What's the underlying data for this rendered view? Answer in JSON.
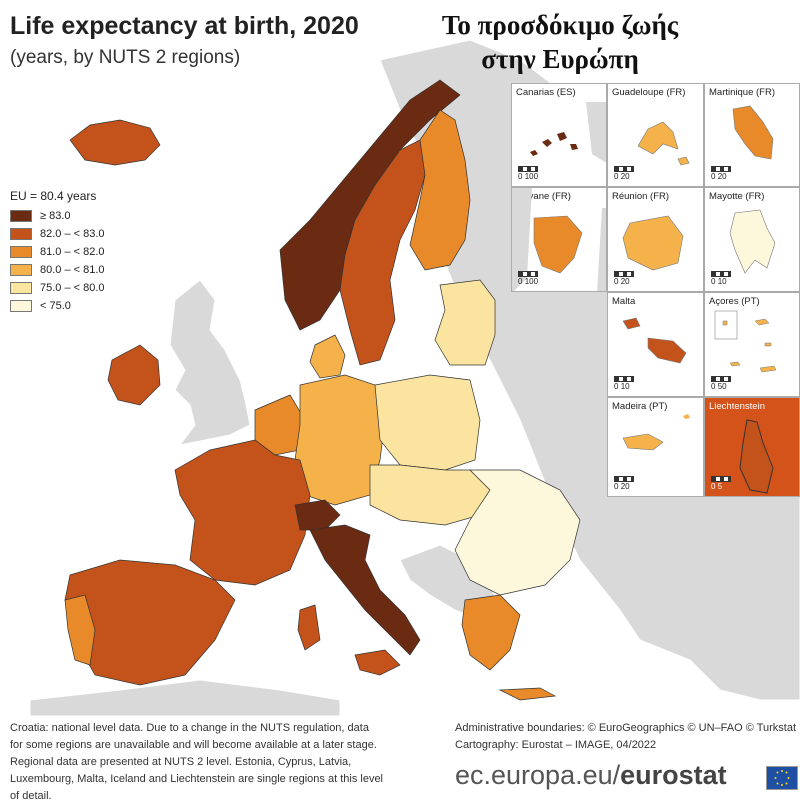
{
  "title": "Life expectancy at birth, 2020",
  "subtitle": "(years, by NUTS 2 regions)",
  "greek_title": {
    "line1": "Το προσδόκιμο ζωής",
    "line2": "στην Ευρώπη"
  },
  "legend": {
    "title": "EU = 80.4 years",
    "classes": [
      {
        "label": "≥ 83.0",
        "color": "#6b2a12"
      },
      {
        "label": "82.0 – < 83.0",
        "color": "#c4531b"
      },
      {
        "label": "81.0 – < 82.0",
        "color": "#e88a2a"
      },
      {
        "label": "80.0 – < 81.0",
        "color": "#f5b24a"
      },
      {
        "label": "75.0 – < 80.0",
        "color": "#fbe3a0"
      },
      {
        "label": "< 75.0",
        "color": "#fdf7dc"
      }
    ],
    "no_data_color": "#d9d9d9",
    "sea_color": "#ffffff"
  },
  "insets": [
    {
      "name": "Canarias (ES)",
      "scale": [
        "0",
        "100"
      ]
    },
    {
      "name": "Guadeloupe (FR)",
      "scale": [
        "0",
        "20"
      ]
    },
    {
      "name": "Martinique (FR)",
      "scale": [
        "0",
        "20"
      ]
    },
    {
      "name": "Guyane (FR)",
      "scale": [
        "0",
        "100"
      ]
    },
    {
      "name": "Réunion (FR)",
      "scale": [
        "0",
        "20"
      ]
    },
    {
      "name": "Mayotte (FR)",
      "scale": [
        "0",
        "10"
      ]
    },
    {
      "name": "Malta",
      "scale": [
        "0",
        "10"
      ]
    },
    {
      "name": "Açores (PT)",
      "scale": [
        "0",
        "50"
      ]
    },
    {
      "name": "Madeira (PT)",
      "scale": [
        "0",
        "20"
      ]
    },
    {
      "name": "Liechtenstein",
      "scale": [
        "0",
        "5"
      ]
    }
  ],
  "notes": {
    "line1": "Croatia: national level data. Due to a change in the NUTS regulation, data",
    "line2": "for some regions are unavailable and will become available at a later stage.",
    "line3": "Regional data are presented at NUTS 2 level. Estonia, Cyprus, Latvia,",
    "line4": "Luxembourg, Malta, Iceland and Liechtenstein are single regions at this level",
    "line5": "of detail."
  },
  "credits": {
    "line1": "Administrative boundaries: © EuroGeographics © UN–FAO © Turkstat",
    "line2": "Cartography: Eurostat – IMAGE, 04/2022"
  },
  "brand": {
    "prefix": "ec.europa.eu/",
    "name": "eurostat"
  }
}
